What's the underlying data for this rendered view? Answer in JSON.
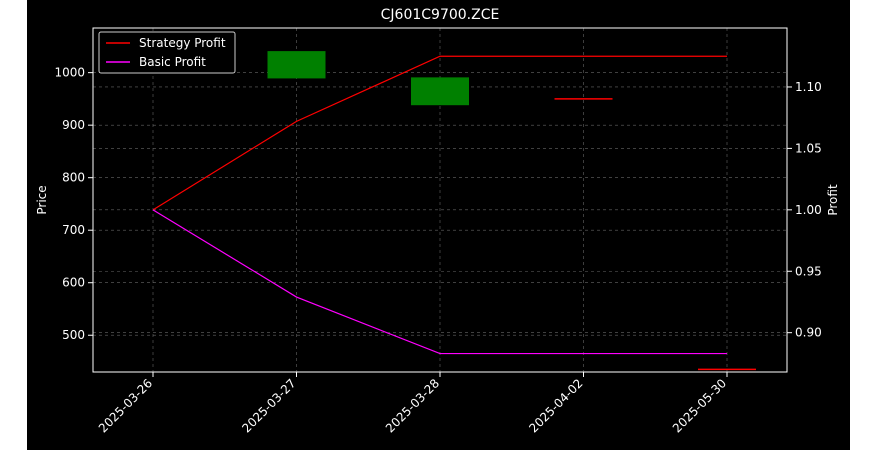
{
  "chart_data": {
    "type": "candlestick+line",
    "title": "CJ601C9700.ZCE",
    "categories": [
      "2025-03-26",
      "2025-03-27",
      "2025-03-28",
      "2025-04-02",
      "2025-05-30"
    ],
    "y_left": {
      "label": "Price",
      "ylim": [
        430,
        1085
      ],
      "ticks": [
        500,
        600,
        700,
        800,
        900,
        1000
      ]
    },
    "y_right": {
      "label": "Profit",
      "ylim": [
        0.868,
        1.148
      ],
      "ticks": [
        0.9,
        0.95,
        1.0,
        1.05,
        1.1
      ],
      "tick_labels": [
        "0.90",
        "0.95",
        "1.00",
        "1.05",
        "1.10"
      ]
    },
    "candles": [
      {
        "date": "2025-03-27",
        "open": 989,
        "close": 1041,
        "color": "#008000"
      },
      {
        "date": "2025-03-28",
        "open": 938,
        "close": 991,
        "color": "#008000"
      },
      {
        "date": "2025-04-02",
        "open": 950,
        "close": 950,
        "color": "#ff0000"
      },
      {
        "date": "2025-05-30",
        "open": 435,
        "close": 435,
        "color": "#ff0000"
      }
    ],
    "series": [
      {
        "name": "Strategy Profit",
        "color": "#ff0000",
        "axis": "right",
        "x": [
          "2025-03-26",
          "2025-03-27",
          "2025-03-28",
          "2025-04-02",
          "2025-05-30"
        ],
        "values": [
          1.0,
          1.072,
          1.125,
          1.125,
          1.125
        ]
      },
      {
        "name": "Basic Profit",
        "color": "#ff00ff",
        "axis": "right",
        "x": [
          "2025-03-26",
          "2025-03-27",
          "2025-03-28",
          "2025-04-02",
          "2025-05-30"
        ],
        "values": [
          1.0,
          0.929,
          0.883,
          0.883,
          0.883
        ]
      }
    ],
    "grid": true,
    "legend_position": "top-left",
    "background": "#000000",
    "x_tick_rotation_deg": 45
  }
}
